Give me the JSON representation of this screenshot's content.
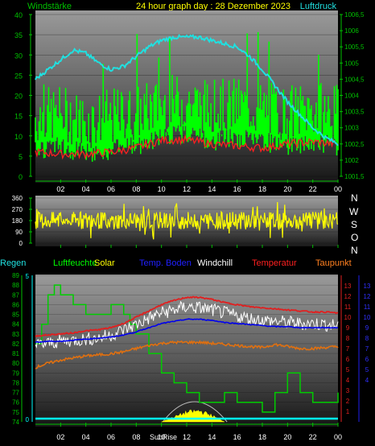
{
  "header": {
    "left_label": "Windstärke",
    "title": "24 hour graph day : 28 Dezember 2023",
    "right_label": "Luftdruck"
  },
  "compass": [
    "N",
    "W",
    "S",
    "O",
    "N"
  ],
  "legend": {
    "regen": "Regen",
    "luftfeuchte": "Luftfeuchte",
    "solar": "Solar",
    "temp_boden": "Temp. Boden",
    "windchill": "Windchill",
    "temperatur": "Temperatur",
    "taupunkt": "Taupunkt"
  },
  "sunrise_label": "SunRise",
  "colors": {
    "wind": "#00ff00",
    "gust_avg": "#ff2020",
    "pressure": "#20e0e0",
    "direction": "#ffff00",
    "humidity": "#00cc00",
    "temperature": "#e02020",
    "windchill": "#ffffff",
    "dewpoint": "#e07010",
    "soil": "#0000ee",
    "solar": "#ffff00",
    "rain": "#00ffff",
    "axis_green": "#00c000"
  },
  "chart_data": [
    {
      "type": "line",
      "title": "24 hour graph day : 28 Dezember 2023",
      "x_ticks": [
        "02",
        "04",
        "06",
        "08",
        "10",
        "12",
        "14",
        "16",
        "18",
        "20",
        "22",
        "00"
      ],
      "y_left_label": "Windstärke",
      "y_left_ticks": [
        0,
        5,
        10,
        15,
        20,
        25,
        30,
        35,
        40
      ],
      "y_left_range": [
        0,
        40
      ],
      "y_right_label": "Luftdruck",
      "y_right_ticks": [
        "1001,5",
        "1002",
        "1002,5",
        "1003",
        "1003,5",
        "1004",
        "1004,5",
        "1005",
        "1005,5",
        "1006",
        "1006,5"
      ],
      "y_right_range": [
        1001.5,
        1006.5
      ],
      "series": [
        {
          "name": "Windstärke",
          "x": [
            0,
            2,
            4,
            6,
            8,
            10,
            12,
            14,
            16,
            18,
            20,
            22,
            24
          ],
          "values": [
            14,
            15,
            13,
            14,
            15,
            17,
            18,
            16,
            17,
            16,
            15,
            16,
            15
          ]
        },
        {
          "name": "Luftdruck",
          "x": [
            0,
            1,
            2,
            3,
            4,
            5,
            6,
            7,
            8,
            9,
            10,
            11,
            12,
            13,
            14,
            15,
            16,
            17,
            18,
            19,
            20,
            21,
            22,
            23,
            24
          ],
          "values": [
            1004.5,
            1004.8,
            1005.1,
            1005.4,
            1005.3,
            1005.0,
            1004.8,
            1004.9,
            1005.2,
            1005.5,
            1005.7,
            1005.8,
            1005.8,
            1005.8,
            1005.7,
            1005.6,
            1005.5,
            1005.2,
            1004.8,
            1004.3,
            1003.8,
            1003.4,
            1003.0,
            1002.7,
            1002.5
          ]
        }
      ],
      "average_line": {
        "x": [
          0,
          2,
          4,
          6,
          8,
          10,
          12,
          14,
          16,
          18,
          20,
          22,
          24
        ],
        "values": [
          6,
          5.5,
          5.5,
          6,
          7,
          9,
          9,
          8,
          7.5,
          7,
          8,
          8.5,
          8
        ]
      }
    },
    {
      "type": "line",
      "x_ticks": [
        "02",
        "04",
        "06",
        "08",
        "10",
        "12",
        "14",
        "16",
        "18",
        "20",
        "22",
        "00"
      ],
      "y_ticks": [
        0,
        90,
        180,
        270,
        360
      ],
      "y_range": [
        0,
        360
      ],
      "series": [
        {
          "name": "Windrichtung",
          "x": [
            0,
            24
          ],
          "values": [
            180,
            180
          ]
        }
      ]
    },
    {
      "type": "line",
      "x_ticks": [
        "02",
        "04",
        "06",
        "08",
        "10",
        "12",
        "14",
        "16",
        "18",
        "20",
        "22",
        "00"
      ],
      "y_humidity_ticks": [
        74,
        75,
        76,
        77,
        78,
        79,
        80,
        81,
        82,
        83,
        84,
        85,
        86,
        87,
        88,
        89
      ],
      "y_humidity_range": [
        74,
        89
      ],
      "y_rain_ticks": [
        0,
        5
      ],
      "y_red_ticks": [
        1,
        2,
        3,
        4,
        5,
        6,
        7,
        8,
        9,
        10,
        11,
        12,
        13
      ],
      "y_blue_ticks": [
        4,
        5,
        6,
        7,
        8,
        9,
        10,
        11,
        12,
        13
      ],
      "temperature_range": [
        0,
        14
      ],
      "series": [
        {
          "name": "Luftfeuchte",
          "x": [
            0,
            0.5,
            1,
            1.5,
            2,
            3,
            4,
            5,
            6,
            6.5,
            7,
            7.5,
            8,
            9,
            10,
            11,
            12,
            13,
            14,
            15,
            16,
            17,
            18,
            19,
            20,
            21,
            22,
            23,
            24
          ],
          "values": [
            82,
            84,
            87,
            88,
            87,
            86,
            85,
            85,
            86,
            86,
            85,
            84,
            83,
            81,
            79,
            78,
            77,
            76,
            76,
            77,
            76,
            76,
            75,
            77,
            79,
            77,
            76,
            76,
            77
          ]
        },
        {
          "name": "Temperatur",
          "x": [
            0,
            1,
            2,
            3,
            4,
            5,
            6,
            7,
            8,
            9,
            10,
            11,
            12,
            13,
            14,
            15,
            16,
            17,
            18,
            19,
            20,
            21,
            22,
            23,
            24
          ],
          "values": [
            8.2,
            8.3,
            8.4,
            8.5,
            8.7,
            8.8,
            9.0,
            9.4,
            10.0,
            10.6,
            11.2,
            11.6,
            11.9,
            11.9,
            11.7,
            11.4,
            11.2,
            11.0,
            10.9,
            10.8,
            10.7,
            10.6,
            10.5,
            10.5,
            10.4
          ]
        },
        {
          "name": "Windchill",
          "x": [
            0,
            1,
            2,
            3,
            4,
            5,
            6,
            7,
            8,
            9,
            10,
            11,
            12,
            13,
            14,
            15,
            16,
            17,
            18,
            19,
            20,
            21,
            22,
            23,
            24
          ],
          "values": [
            7.3,
            7.5,
            7.7,
            7.8,
            7.9,
            8.0,
            8.3,
            8.8,
            9.3,
            9.9,
            10.4,
            10.7,
            11.0,
            10.9,
            10.7,
            10.4,
            10.1,
            9.9,
            9.7,
            9.6,
            9.5,
            9.4,
            9.4,
            9.3,
            9.2
          ]
        },
        {
          "name": "Taupunkt",
          "x": [
            0,
            1,
            2,
            3,
            4,
            5,
            6,
            7,
            8,
            9,
            10,
            11,
            12,
            13,
            14,
            15,
            16,
            17,
            18,
            19,
            20,
            21,
            22,
            23,
            24
          ],
          "values": [
            5.2,
            5.6,
            5.9,
            6.1,
            6.3,
            6.4,
            6.5,
            6.7,
            7.0,
            7.3,
            7.5,
            7.6,
            7.6,
            7.6,
            7.5,
            7.4,
            7.3,
            7.2,
            7.1,
            7.4,
            7.2,
            7.0,
            7.0,
            7.1,
            7.2
          ]
        },
        {
          "name": "Temp. Boden",
          "x": [
            0,
            1,
            2,
            3,
            4,
            5,
            6,
            7,
            8,
            9,
            10,
            11,
            12,
            13,
            14,
            15,
            16,
            17,
            18,
            19,
            20,
            21,
            22,
            23,
            24
          ],
          "values": [
            7.6,
            7.7,
            7.7,
            7.8,
            7.9,
            8.0,
            8.1,
            8.3,
            8.6,
            9.0,
            9.4,
            9.6,
            9.8,
            9.8,
            9.7,
            9.5,
            9.4,
            9.3,
            9.2,
            9.1,
            9.1,
            9.0,
            9.0,
            9.0,
            9.0
          ]
        },
        {
          "name": "Solar",
          "x": [
            10,
            11,
            12,
            13,
            14,
            15
          ],
          "values": [
            0,
            0.3,
            0.6,
            0.7,
            0.4,
            0
          ]
        },
        {
          "name": "Regen",
          "x": [
            0,
            24
          ],
          "values": [
            0.3,
            0.3
          ]
        }
      ]
    }
  ]
}
